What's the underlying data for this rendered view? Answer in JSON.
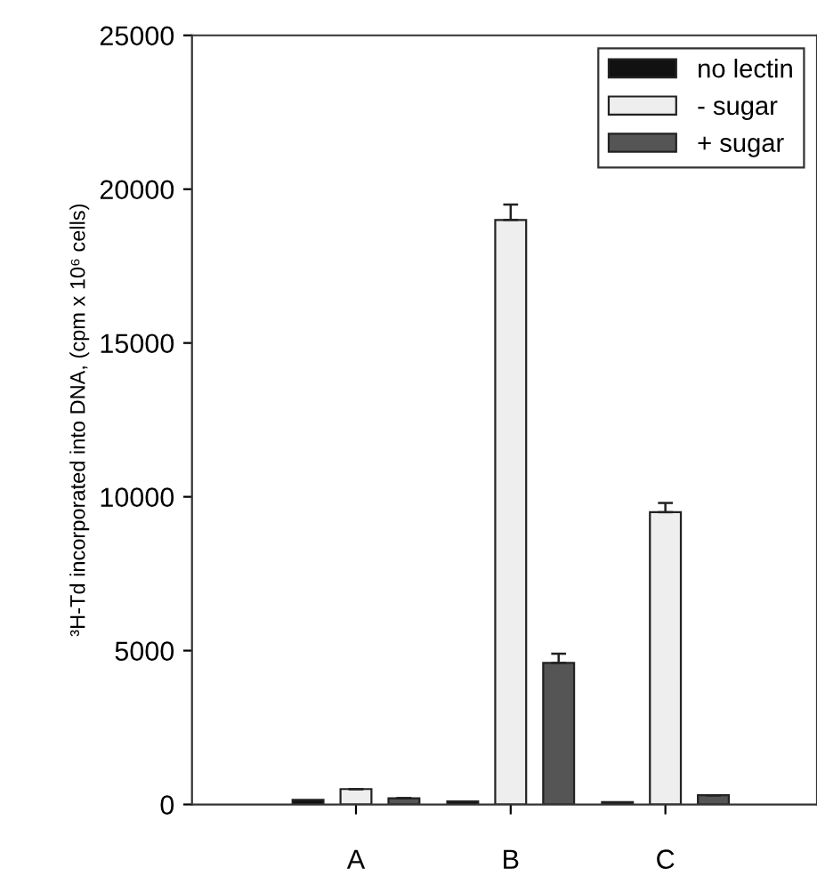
{
  "chart_data": {
    "type": "bar",
    "ylabel": "³H-Td incorporated into DNA, (cpm x 10⁶ cells)",
    "categories": [
      "A",
      "B",
      "C"
    ],
    "series": [
      {
        "name": "no lectin",
        "color": "#111111",
        "values": [
          150,
          100,
          80
        ]
      },
      {
        "name": "- sugar",
        "color": "#eeeeee",
        "values": [
          500,
          19000,
          9500
        ],
        "errors": [
          null,
          500,
          300
        ]
      },
      {
        "name": "+ sugar",
        "color": "#555555",
        "values": [
          200,
          4600,
          300
        ],
        "errors": [
          null,
          300,
          null
        ]
      }
    ],
    "ylim": [
      0,
      25000
    ],
    "yticks": [
      0,
      5000,
      10000,
      15000,
      20000,
      25000
    ],
    "grid": false,
    "legend": "top right"
  }
}
